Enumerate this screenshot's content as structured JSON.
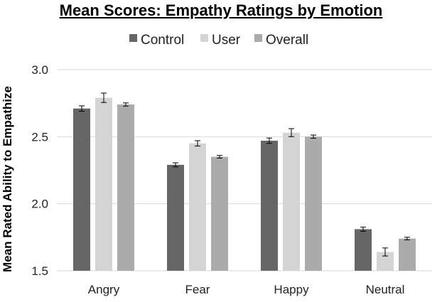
{
  "chart_data": {
    "type": "bar",
    "title": "Mean Scores: Empathy Ratings by Emotion",
    "xlabel": "",
    "ylabel": "Mean Rated Ability to Empathize",
    "ylim": [
      1.5,
      3.0
    ],
    "yticks": [
      "1.5",
      "2.0",
      "2.5",
      "3.0"
    ],
    "categories": [
      "Angry",
      "Fear",
      "Happy",
      "Neutral"
    ],
    "series": [
      {
        "name": "Control",
        "color": "#666666",
        "values": [
          2.71,
          2.29,
          2.47,
          1.81
        ],
        "errors": [
          0.02,
          0.015,
          0.02,
          0.015
        ]
      },
      {
        "name": "User",
        "color": "#d4d4d4",
        "values": [
          2.79,
          2.45,
          2.53,
          1.64
        ],
        "errors": [
          0.035,
          0.02,
          0.03,
          0.03
        ]
      },
      {
        "name": "Overall",
        "color": "#ababab",
        "values": [
          2.74,
          2.35,
          2.5,
          1.74
        ],
        "errors": [
          0.012,
          0.01,
          0.012,
          0.01
        ]
      }
    ],
    "grid": true,
    "legend": "top"
  }
}
